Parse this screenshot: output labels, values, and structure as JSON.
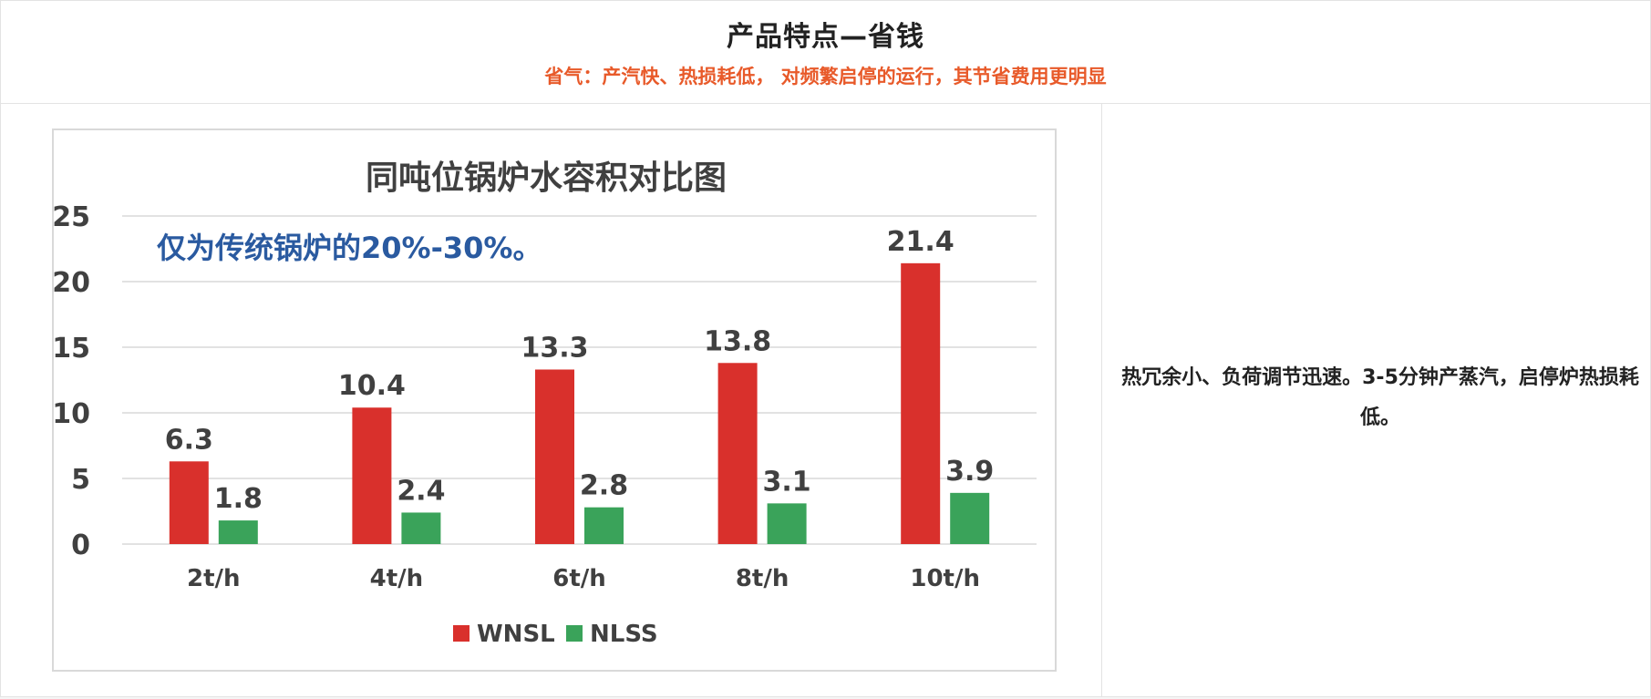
{
  "header": {
    "title": "产品特点—省钱",
    "subtitle": "省气：产汽快、热损耗低， 对频繁启停的运行，其节省费用更明显"
  },
  "chart_data": {
    "type": "bar",
    "title": "同吨位锅炉水容积对比图",
    "annotation": "仅为传统锅炉的20%-30%。",
    "categories": [
      "2t/h",
      "4t/h",
      "6t/h",
      "8t/h",
      "10t/h"
    ],
    "series": [
      {
        "name": "WNSL",
        "color": "#d9302c",
        "values": [
          6.3,
          10.4,
          13.3,
          13.8,
          21.4
        ]
      },
      {
        "name": "NLSS",
        "color": "#3aa35a",
        "values": [
          1.8,
          2.4,
          2.8,
          3.1,
          3.9
        ]
      }
    ],
    "ylim": [
      0,
      25
    ],
    "yticks": [
      0,
      5,
      10,
      15,
      20,
      25
    ],
    "grid": true,
    "legend_position": "bottom",
    "xlabel": "",
    "ylabel": ""
  },
  "side_text": "热冗余小、负荷调节迅速。3-5分钟产蒸汽，启停炉热损耗低。"
}
